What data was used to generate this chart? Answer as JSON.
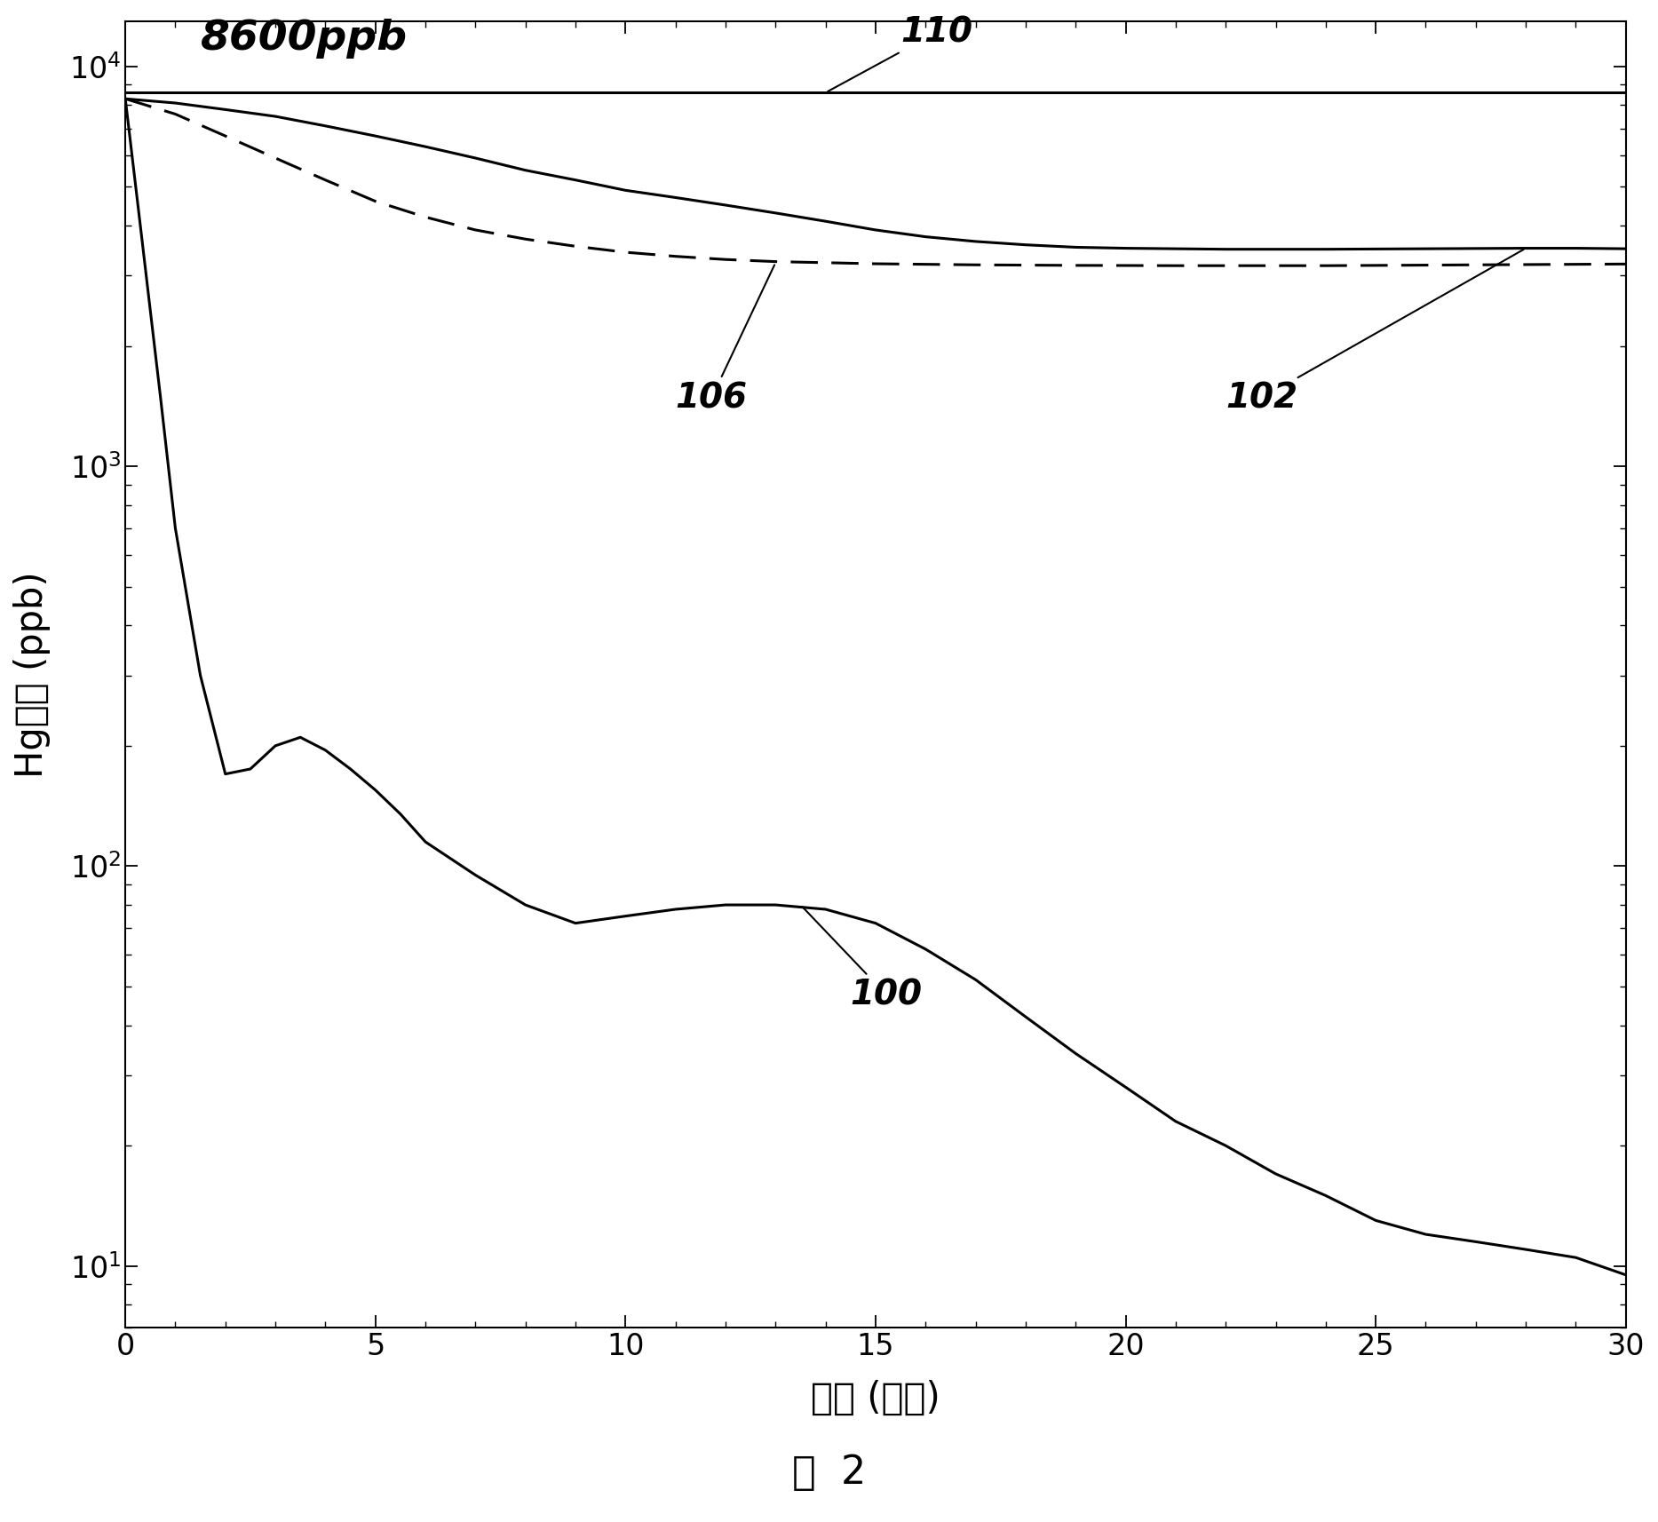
{
  "xlabel": "时间 (分钟)",
  "ylabel": "Hg浓度 (ppb)",
  "figure_caption": "图  2",
  "annotation_8600ppb": "8600ppb",
  "annotation_110": "110",
  "annotation_106": "106",
  "annotation_102": "102",
  "annotation_100": "100",
  "xlim": [
    0,
    30
  ],
  "ylim": [
    7,
    13000
  ],
  "xticks": [
    0,
    5,
    10,
    15,
    20,
    25,
    30
  ],
  "line_color": "#000000",
  "curve110_x": [
    0,
    30
  ],
  "curve110_y": [
    8600,
    8600
  ],
  "curve102_x": [
    0,
    1,
    2,
    3,
    4,
    5,
    6,
    7,
    8,
    9,
    10,
    11,
    12,
    13,
    14,
    15,
    16,
    17,
    18,
    19,
    20,
    21,
    22,
    23,
    24,
    25,
    26,
    27,
    28,
    29,
    30
  ],
  "curve102_y": [
    8300,
    8100,
    7800,
    7500,
    7100,
    6700,
    6300,
    5900,
    5500,
    5200,
    4900,
    4700,
    4500,
    4300,
    4100,
    3900,
    3750,
    3650,
    3580,
    3530,
    3510,
    3500,
    3490,
    3490,
    3490,
    3495,
    3500,
    3505,
    3510,
    3510,
    3500
  ],
  "curve106_x": [
    0,
    1,
    2,
    3,
    4,
    5,
    6,
    7,
    8,
    9,
    10,
    11,
    12,
    13,
    14,
    15,
    16,
    17,
    18,
    19,
    20,
    21,
    22,
    23,
    24,
    25,
    26,
    27,
    28,
    29,
    30
  ],
  "curve106_y": [
    8300,
    7600,
    6700,
    5900,
    5200,
    4600,
    4200,
    3900,
    3700,
    3550,
    3430,
    3350,
    3290,
    3250,
    3230,
    3210,
    3200,
    3190,
    3185,
    3180,
    3178,
    3175,
    3175,
    3175,
    3175,
    3180,
    3185,
    3190,
    3195,
    3200,
    3205
  ],
  "curve100_x": [
    0,
    0.3,
    0.7,
    1,
    1.5,
    2,
    2.5,
    3,
    3.5,
    4,
    4.5,
    5,
    5.5,
    6,
    7,
    8,
    9,
    10,
    11,
    12,
    13,
    14,
    15,
    16,
    17,
    18,
    19,
    20,
    21,
    22,
    23,
    24,
    25,
    26,
    27,
    28,
    29,
    30
  ],
  "curve100_y": [
    8300,
    4000,
    1500,
    700,
    300,
    170,
    175,
    200,
    210,
    195,
    175,
    155,
    135,
    115,
    95,
    80,
    72,
    75,
    78,
    80,
    80,
    78,
    72,
    62,
    52,
    42,
    34,
    28,
    23,
    20,
    17,
    15,
    13,
    12,
    11.5,
    11,
    10.5,
    9.5
  ]
}
